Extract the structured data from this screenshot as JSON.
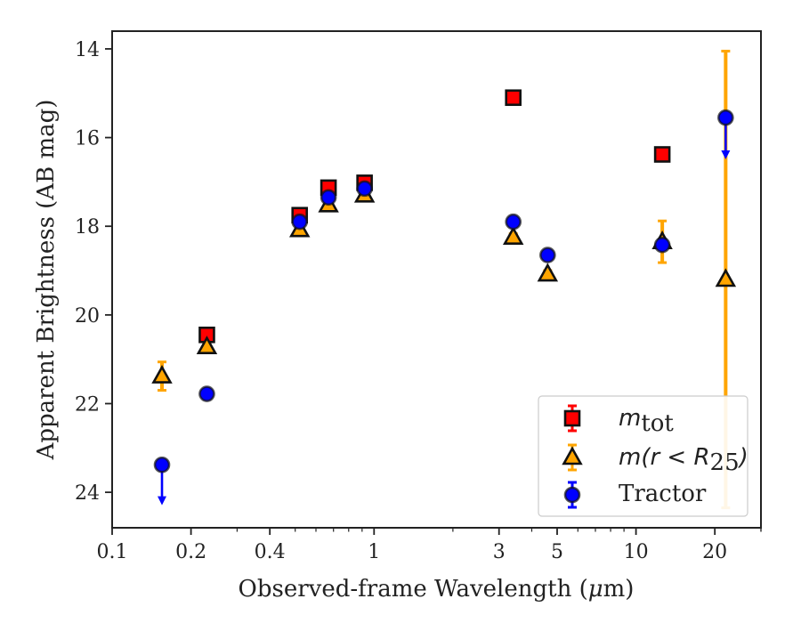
{
  "chart_data": {
    "type": "scatter",
    "x_scale": "log",
    "y_inverted": true,
    "xlim": [
      0.1,
      30
    ],
    "ylim": [
      24.8,
      13.6
    ],
    "xlabel_prefix": "Observed-frame Wavelength (",
    "xlabel_mu": "μ",
    "xlabel_suffix": "m)",
    "ylabel": "Apparent Brightness (AB mag)",
    "x_ticks": [
      0.1,
      0.2,
      0.4,
      1,
      3,
      5,
      10,
      20
    ],
    "x_tick_labels": [
      "0.1",
      "0.2",
      "0.4",
      "1",
      "3",
      "5",
      "10",
      "20"
    ],
    "y_ticks": [
      14,
      16,
      18,
      20,
      22,
      24
    ],
    "y_tick_labels": [
      "14",
      "16",
      "18",
      "20",
      "22",
      "24"
    ],
    "grid": false,
    "legend_position": "lower-right",
    "series": [
      {
        "name": "m_tot",
        "marker": "square",
        "color": "#ff0000",
        "errcolor": "#ff0000",
        "points": [
          {
            "x": 0.23,
            "y": 20.45,
            "err": 0.1
          },
          {
            "x": 0.52,
            "y": 17.75,
            "err": 0.1
          },
          {
            "x": 0.67,
            "y": 17.13,
            "err": 0.1
          },
          {
            "x": 0.92,
            "y": 17.02,
            "err": 0.1
          },
          {
            "x": 3.4,
            "y": 15.1,
            "err": 0.05
          },
          {
            "x": 12.6,
            "y": 16.38,
            "err": 0.05
          }
        ]
      },
      {
        "name": "m(r < R25)",
        "marker": "triangle",
        "color": "#ffa500",
        "errcolor": "#ffa500",
        "points": [
          {
            "x": 0.155,
            "y": 21.38,
            "err": 0.32
          },
          {
            "x": 0.23,
            "y": 20.72,
            "err": 0.12
          },
          {
            "x": 0.52,
            "y": 18.08,
            "err": 0.1
          },
          {
            "x": 0.67,
            "y": 17.52,
            "err": 0.1
          },
          {
            "x": 0.92,
            "y": 17.3,
            "err": 0.1
          },
          {
            "x": 3.4,
            "y": 18.25,
            "err": 0.08
          },
          {
            "x": 4.6,
            "y": 19.08,
            "err": 0.08
          },
          {
            "x": 12.6,
            "y": 18.35,
            "err": 0.47
          },
          {
            "x": 22,
            "y": 19.2,
            "err": 5.15
          }
        ]
      },
      {
        "name": "Tractor",
        "marker": "circle",
        "color": "#0000ff",
        "errcolor": "#0000ff",
        "points": [
          {
            "x": 0.155,
            "y": 23.38,
            "upper_limit": true,
            "arrow_to": 24.25
          },
          {
            "x": 0.23,
            "y": 21.78,
            "err": 0.08
          },
          {
            "x": 0.52,
            "y": 17.9,
            "err": 0.08
          },
          {
            "x": 0.67,
            "y": 17.35,
            "err": 0.08
          },
          {
            "x": 0.92,
            "y": 17.15,
            "err": 0.08
          },
          {
            "x": 3.4,
            "y": 17.9,
            "err": 0.08
          },
          {
            "x": 4.6,
            "y": 18.65,
            "err": 0.08
          },
          {
            "x": 12.6,
            "y": 18.42,
            "err": 0.08
          },
          {
            "x": 22,
            "y": 15.55,
            "upper_limit": true,
            "arrow_to": 16.45
          }
        ]
      }
    ]
  },
  "legend": {
    "mtot_base": "m",
    "mtot_sub": "tot",
    "mr_prefix": "m(r < R",
    "mr_sub": "25",
    "mr_suffix": ")",
    "tractor": "Tractor"
  }
}
